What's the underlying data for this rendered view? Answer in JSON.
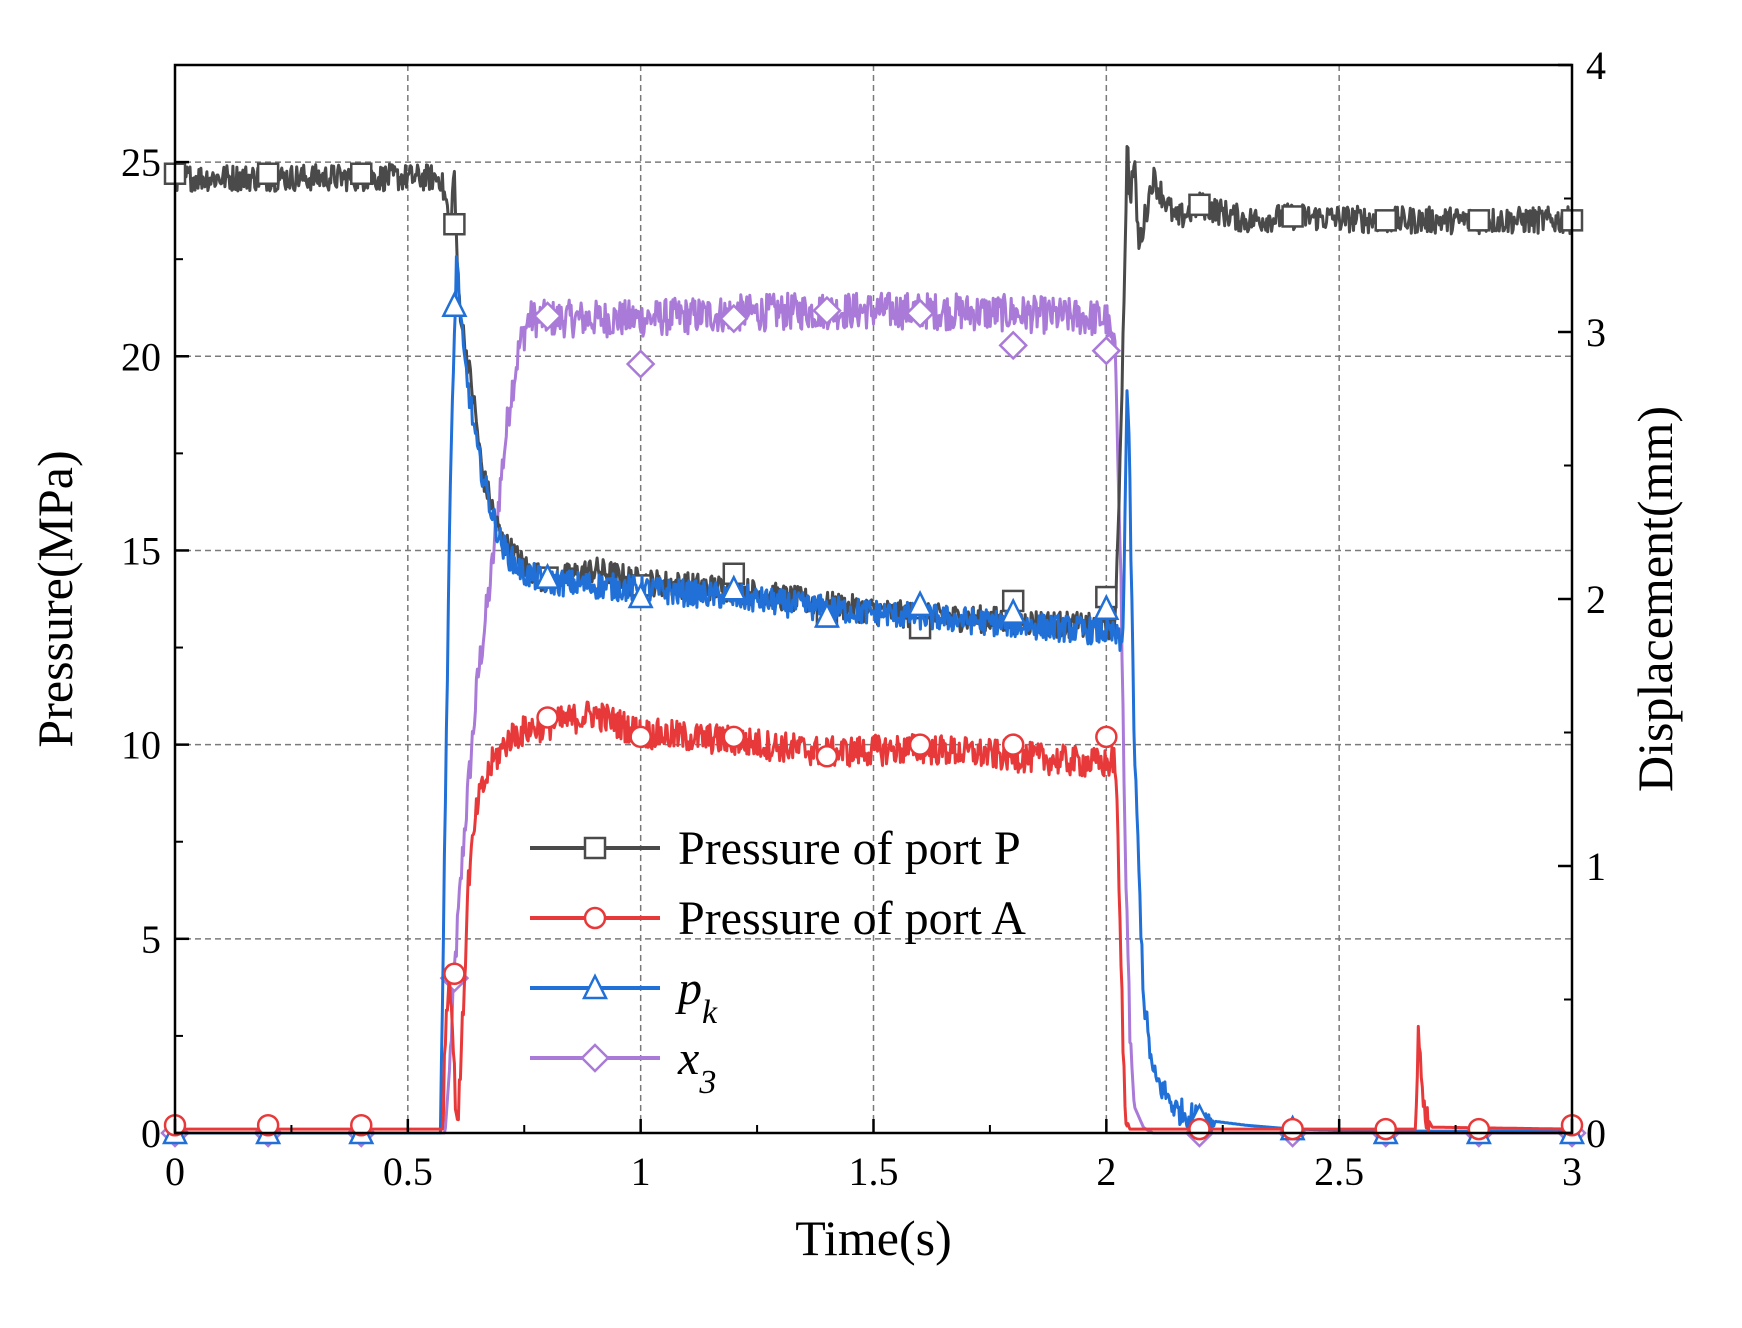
{
  "chart_data": {
    "type": "line",
    "x_axis": {
      "label": "Time(s)",
      "range": [
        0,
        3
      ],
      "ticks": [
        0,
        0.5,
        1,
        1.5,
        2,
        2.5,
        3
      ],
      "tick_labels": [
        "0",
        "0.5",
        "1",
        "1.5",
        "2",
        "2.5",
        "3"
      ]
    },
    "y_axis_left": {
      "label": "Pressure(MPa)",
      "range": [
        0,
        27.5
      ],
      "ticks": [
        0,
        5,
        10,
        15,
        20,
        25
      ],
      "tick_labels": [
        "0",
        "5",
        "10",
        "15",
        "20",
        "25"
      ]
    },
    "y_axis_right": {
      "label": "Displacement(mm)",
      "range": [
        0,
        4
      ],
      "ticks": [
        0,
        1,
        2,
        3,
        4
      ],
      "tick_labels": [
        "0",
        "1",
        "2",
        "3",
        "4"
      ]
    },
    "grid": true,
    "legend_position": "lower-center",
    "series": [
      {
        "name": "Pressure of port P",
        "label_html": "Pressure of port P",
        "color": "#4a4a4a",
        "axis": "left",
        "marker": "square",
        "noise": 0.35,
        "x": [
          0,
          0.2,
          0.4,
          0.57,
          0.585,
          0.59,
          0.6,
          0.605,
          0.61,
          0.62,
          0.64,
          0.66,
          0.7,
          0.75,
          0.8,
          0.9,
          1.0,
          1.2,
          1.4,
          1.6,
          1.8,
          2.0,
          2.02,
          2.035,
          2.045,
          2.05,
          2.06,
          2.07,
          2.1,
          2.15,
          2.2,
          2.3,
          2.4,
          2.6,
          2.8,
          3.0
        ],
        "y": [
          24.6,
          24.6,
          24.6,
          24.6,
          23.8,
          23.2,
          24.8,
          22.5,
          21.5,
          20.5,
          19.0,
          17.0,
          15.3,
          14.6,
          14.2,
          14.5,
          14.2,
          14.0,
          13.6,
          13.3,
          13.2,
          13.0,
          13.2,
          20.0,
          25.6,
          24.0,
          25.0,
          22.8,
          24.6,
          23.5,
          23.9,
          23.5,
          23.6,
          23.5,
          23.5,
          23.5
        ],
        "markers_x": [
          0,
          0.2,
          0.4,
          0.6,
          0.8,
          1.0,
          1.2,
          1.4,
          1.6,
          1.8,
          2.0,
          2.2,
          2.4,
          2.6,
          2.8,
          3.0
        ],
        "markers_y": [
          24.7,
          24.7,
          24.7,
          23.4,
          14.3,
          14.1,
          14.4,
          13.3,
          13.0,
          13.7,
          13.8,
          23.9,
          23.6,
          23.5,
          23.5,
          23.5
        ]
      },
      {
        "name": "Pressure of port A",
        "label_html": "Pressure of port A",
        "color": "#e8393a",
        "axis": "left",
        "marker": "circle",
        "noise": 0.4,
        "x": [
          0,
          0.575,
          0.58,
          0.59,
          0.6,
          0.605,
          0.61,
          0.62,
          0.63,
          0.65,
          0.68,
          0.72,
          0.76,
          0.8,
          0.9,
          1.0,
          1.2,
          1.4,
          1.6,
          1.8,
          2.0,
          2.02,
          2.03,
          2.04,
          2.05,
          2.1,
          2.665,
          2.67,
          2.68,
          2.7,
          3.0
        ],
        "y": [
          0.1,
          0.1,
          2.5,
          4.2,
          1.5,
          0.3,
          0.8,
          3.5,
          6.5,
          8.5,
          9.5,
          10.2,
          10.4,
          10.5,
          10.8,
          10.3,
          10.1,
          9.8,
          9.9,
          9.7,
          9.5,
          9.6,
          5.0,
          0.5,
          0.1,
          0.1,
          0.1,
          3.1,
          0.6,
          0.15,
          0.1
        ],
        "markers_x": [
          0,
          0.2,
          0.4,
          0.6,
          0.8,
          1.0,
          1.2,
          1.4,
          1.6,
          1.8,
          2.0,
          2.2,
          2.4,
          2.6,
          2.8,
          3.0
        ],
        "markers_y": [
          0.2,
          0.2,
          0.2,
          4.1,
          10.7,
          10.2,
          10.2,
          9.7,
          10.0,
          10.0,
          10.2,
          0.1,
          0.1,
          0.1,
          0.1,
          0.2
        ]
      },
      {
        "name": "p_k",
        "label_html": "p<tspan baseline-shift=\"sub\" font-size=\"34\">k</tspan>",
        "color": "#2070d8",
        "axis": "left",
        "marker": "triangle",
        "noise": 0.35,
        "x": [
          0,
          0.56,
          0.57,
          0.58,
          0.59,
          0.6,
          0.605,
          0.61,
          0.62,
          0.65,
          0.68,
          0.7,
          0.72,
          0.75,
          0.8,
          1.0,
          1.2,
          1.4,
          1.6,
          1.8,
          2.0,
          2.02,
          2.035,
          2.045,
          2.05,
          2.06,
          2.08,
          2.1,
          2.15,
          2.2,
          2.3,
          2.4,
          2.6,
          3.0
        ],
        "y": [
          0,
          0,
          0,
          8.0,
          16.0,
          20.5,
          22.8,
          21.5,
          20.0,
          17.5,
          16.0,
          15.2,
          14.8,
          14.4,
          14.2,
          14.0,
          13.8,
          13.5,
          13.3,
          13.1,
          12.9,
          12.8,
          12.5,
          19.5,
          17.0,
          10.0,
          3.5,
          1.5,
          0.6,
          0.35,
          0.2,
          0.1,
          0.05,
          0.05
        ],
        "markers_x": [
          0,
          0.2,
          0.4,
          0.6,
          0.8,
          1.0,
          1.2,
          1.4,
          1.6,
          1.8,
          2.0,
          2.2,
          2.4,
          2.6,
          2.8,
          3.0
        ],
        "markers_y": [
          0.0,
          0.0,
          0.0,
          21.3,
          14.3,
          13.8,
          14.0,
          13.3,
          13.6,
          13.4,
          13.5,
          0.4,
          0.1,
          0.0,
          0.0,
          0.0
        ]
      },
      {
        "name": "x_3",
        "label_html": "x<tspan baseline-shift=\"sub\" font-size=\"34\">3</tspan>",
        "color": "#a97ad8",
        "axis": "right",
        "marker": "diamond",
        "noise": 0.07,
        "x": [
          0,
          0.58,
          0.59,
          0.6,
          0.62,
          0.65,
          0.68,
          0.7,
          0.72,
          0.74,
          0.76,
          0.8,
          1.0,
          1.2,
          1.4,
          1.6,
          1.8,
          2.0,
          2.02,
          2.03,
          2.04,
          2.05,
          2.06,
          2.08,
          2.1,
          3.0
        ],
        "y": [
          0,
          0,
          0.25,
          0.6,
          1.1,
          1.7,
          2.1,
          2.45,
          2.75,
          2.95,
          3.05,
          3.05,
          3.05,
          3.07,
          3.08,
          3.08,
          3.07,
          3.05,
          2.9,
          2.2,
          1.1,
          0.4,
          0.1,
          0.02,
          0,
          0
        ],
        "markers_x": [
          0,
          0.2,
          0.4,
          0.6,
          0.8,
          1.0,
          1.2,
          1.4,
          1.6,
          1.8,
          2.0,
          2.2,
          2.4,
          2.6,
          2.8,
          3.0
        ],
        "markers_y": [
          0.0,
          0.0,
          0.0,
          0.58,
          3.06,
          2.88,
          3.05,
          3.08,
          3.07,
          2.95,
          2.93,
          0.0,
          0.0,
          0.0,
          0.0,
          0.0
        ]
      }
    ]
  }
}
